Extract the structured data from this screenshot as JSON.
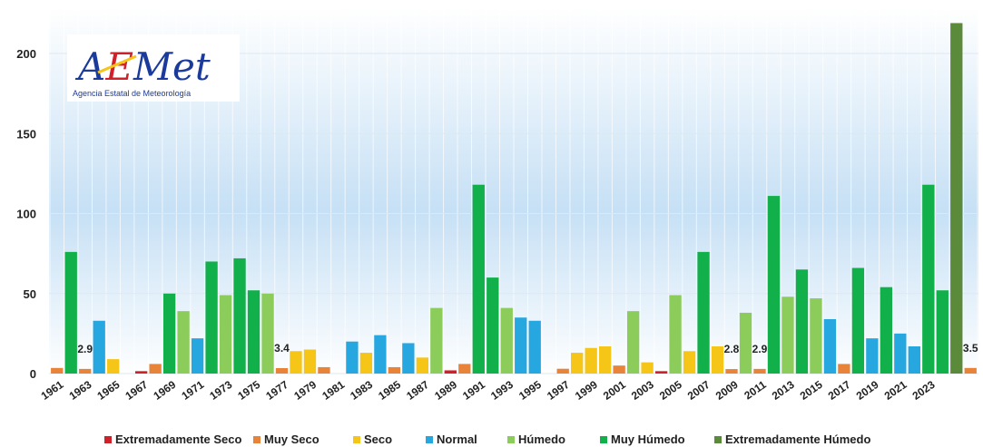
{
  "logo": {
    "name": "AEMet",
    "subtitle": "Agencia Estatal de Meteorología"
  },
  "chart_data": {
    "type": "bar",
    "ylim": [
      0,
      220
    ],
    "y_ticks": [
      0,
      50,
      100,
      150,
      200
    ],
    "grid": true,
    "legend_position": "bottom",
    "categories": [
      {
        "key": "ext_seco",
        "label": "Extremadamente Seco",
        "color": "#d0202a"
      },
      {
        "key": "muy_seco",
        "label": "Muy Seco",
        "color": "#e8833a"
      },
      {
        "key": "seco",
        "label": "Seco",
        "color": "#f5c518"
      },
      {
        "key": "normal",
        "label": "Normal",
        "color": "#27a7e0"
      },
      {
        "key": "humedo",
        "label": "Húmedo",
        "color": "#8ccc5a"
      },
      {
        "key": "muy_humedo",
        "label": "Muy Húmedo",
        "color": "#12b04a"
      },
      {
        "key": "ext_humedo",
        "label": "Extremadamente Húmedo",
        "color": "#5b8a3a"
      }
    ],
    "x_tick_labels": [
      "1961",
      "1963",
      "1965",
      "1967",
      "1969",
      "1971",
      "1973",
      "1975",
      "1977",
      "1979",
      "1981",
      "1983",
      "1985",
      "1987",
      "1989",
      "1991",
      "1993",
      "1995",
      "1997",
      "1999",
      "2001",
      "2003",
      "2005",
      "2007",
      "2009",
      "2011",
      "2013",
      "2015",
      "2017",
      "2019",
      "2021",
      "2023"
    ],
    "bars": [
      {
        "year": 1961,
        "value": 3.5,
        "cat": "muy_seco"
      },
      {
        "year": 1962,
        "value": 76,
        "cat": "muy_humedo"
      },
      {
        "year": 1963,
        "value": 2.9,
        "cat": "muy_seco",
        "label": "2.9"
      },
      {
        "year": 1964,
        "value": 33,
        "cat": "normal"
      },
      {
        "year": 1965,
        "value": 9,
        "cat": "seco"
      },
      {
        "year": 1966,
        "value": 0,
        "cat": "seco"
      },
      {
        "year": 1967,
        "value": 1.5,
        "cat": "ext_seco"
      },
      {
        "year": 1968,
        "value": 6,
        "cat": "muy_seco"
      },
      {
        "year": 1969,
        "value": 50,
        "cat": "muy_humedo"
      },
      {
        "year": 1970,
        "value": 39,
        "cat": "humedo"
      },
      {
        "year": 1971,
        "value": 22,
        "cat": "normal"
      },
      {
        "year": 1972,
        "value": 70,
        "cat": "muy_humedo"
      },
      {
        "year": 1973,
        "value": 49,
        "cat": "humedo"
      },
      {
        "year": 1974,
        "value": 72,
        "cat": "muy_humedo"
      },
      {
        "year": 1975,
        "value": 52,
        "cat": "muy_humedo"
      },
      {
        "year": 1976,
        "value": 50,
        "cat": "humedo"
      },
      {
        "year": 1977,
        "value": 3.4,
        "cat": "muy_seco",
        "label": "3.4"
      },
      {
        "year": 1978,
        "value": 14,
        "cat": "seco"
      },
      {
        "year": 1979,
        "value": 15,
        "cat": "seco"
      },
      {
        "year": 1980,
        "value": 4,
        "cat": "muy_seco"
      },
      {
        "year": 1981,
        "value": 0,
        "cat": "normal"
      },
      {
        "year": 1982,
        "value": 20,
        "cat": "normal"
      },
      {
        "year": 1983,
        "value": 13,
        "cat": "seco"
      },
      {
        "year": 1984,
        "value": 24,
        "cat": "normal"
      },
      {
        "year": 1985,
        "value": 4,
        "cat": "muy_seco"
      },
      {
        "year": 1986,
        "value": 19,
        "cat": "normal"
      },
      {
        "year": 1987,
        "value": 10,
        "cat": "seco"
      },
      {
        "year": 1988,
        "value": 41,
        "cat": "humedo"
      },
      {
        "year": 1989,
        "value": 2,
        "cat": "ext_seco"
      },
      {
        "year": 1990,
        "value": 6,
        "cat": "muy_seco"
      },
      {
        "year": 1991,
        "value": 118,
        "cat": "muy_humedo"
      },
      {
        "year": 1992,
        "value": 60,
        "cat": "muy_humedo"
      },
      {
        "year": 1993,
        "value": 41,
        "cat": "humedo"
      },
      {
        "year": 1994,
        "value": 35,
        "cat": "normal"
      },
      {
        "year": 1995,
        "value": 33,
        "cat": "normal"
      },
      {
        "year": 1996,
        "value": 0,
        "cat": "seco"
      },
      {
        "year": 1997,
        "value": 3,
        "cat": "muy_seco"
      },
      {
        "year": 1998,
        "value": 13,
        "cat": "seco"
      },
      {
        "year": 1999,
        "value": 16,
        "cat": "seco"
      },
      {
        "year": 2000,
        "value": 17,
        "cat": "seco"
      },
      {
        "year": 2001,
        "value": 5,
        "cat": "muy_seco"
      },
      {
        "year": 2002,
        "value": 39,
        "cat": "humedo"
      },
      {
        "year": 2003,
        "value": 7,
        "cat": "seco"
      },
      {
        "year": 2004,
        "value": 1.5,
        "cat": "ext_seco"
      },
      {
        "year": 2005,
        "value": 49,
        "cat": "humedo"
      },
      {
        "year": 2006,
        "value": 14,
        "cat": "seco"
      },
      {
        "year": 2007,
        "value": 76,
        "cat": "muy_humedo"
      },
      {
        "year": 2008,
        "value": 17,
        "cat": "seco"
      },
      {
        "year": 2009,
        "value": 2.8,
        "cat": "muy_seco",
        "label": "2.8"
      },
      {
        "year": 2010,
        "value": 38,
        "cat": "humedo"
      },
      {
        "year": 2011,
        "value": 2.9,
        "cat": "muy_seco",
        "label": "2.9"
      },
      {
        "year": 2012,
        "value": 111,
        "cat": "muy_humedo"
      },
      {
        "year": 2013,
        "value": 48,
        "cat": "humedo"
      },
      {
        "year": 2014,
        "value": 65,
        "cat": "muy_humedo"
      },
      {
        "year": 2015,
        "value": 47,
        "cat": "humedo"
      },
      {
        "year": 2016,
        "value": 34,
        "cat": "normal"
      },
      {
        "year": 2017,
        "value": 6,
        "cat": "muy_seco"
      },
      {
        "year": 2018,
        "value": 66,
        "cat": "muy_humedo"
      },
      {
        "year": 2019,
        "value": 22,
        "cat": "normal"
      },
      {
        "year": 2020,
        "value": 54,
        "cat": "muy_humedo"
      },
      {
        "year": 2021,
        "value": 25,
        "cat": "normal"
      },
      {
        "year": 2022,
        "value": 17,
        "cat": "normal"
      },
      {
        "year": 2023,
        "value": 118,
        "cat": "muy_humedo"
      },
      {
        "year": 2024,
        "value": 52,
        "cat": "muy_humedo"
      },
      {
        "year": 2025,
        "value": 219,
        "cat": "ext_humedo"
      },
      {
        "year": 2026,
        "value": 3.5,
        "cat": "muy_seco",
        "label": "3.5"
      }
    ]
  }
}
